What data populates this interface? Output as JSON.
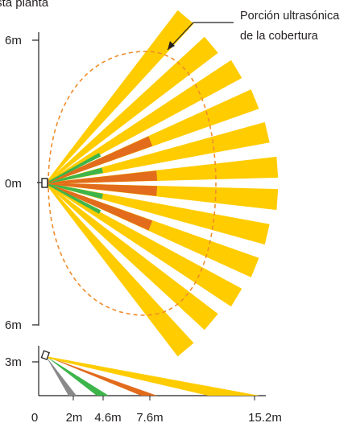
{
  "top_view": {
    "title_fragment": "Vista planta",
    "y_labels": [
      "6m",
      "0m",
      "6m"
    ],
    "annotation": [
      "Porción ultrasónica",
      "de la cobertura"
    ]
  },
  "side_view": {
    "y_label": "3m",
    "x_labels": [
      "0",
      "2m",
      "4.6m",
      "7.6m",
      "15.2m"
    ]
  },
  "colors": {
    "long_beam": "#ffcc00",
    "mid_beam": "#e26c1c",
    "short_beam": "#3db54a",
    "near_beam": "#8a8a8a",
    "ultrasonic_outline": "#f08c2c",
    "axis": "#231f20"
  }
}
